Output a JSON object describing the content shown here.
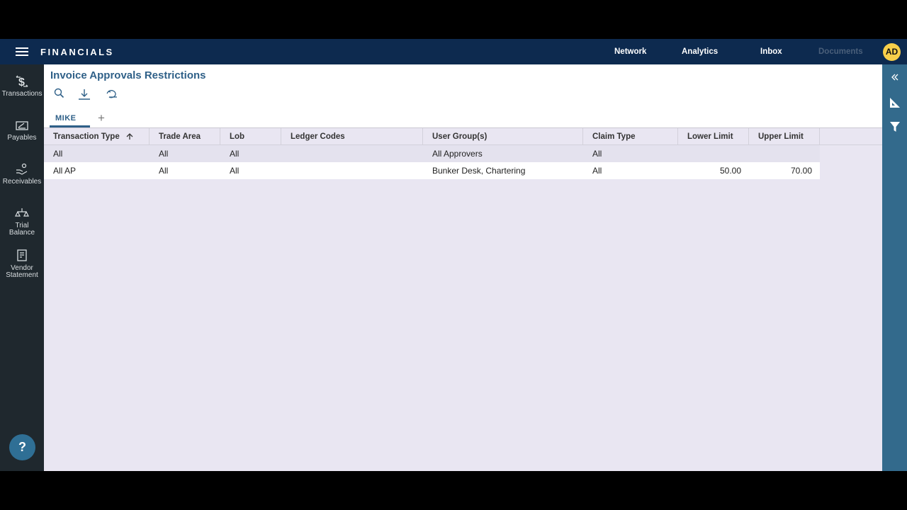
{
  "header": {
    "app_title": "FINANCIALS",
    "nav": [
      "Network",
      "Analytics",
      "Inbox",
      "Documents"
    ],
    "avatar": "AD"
  },
  "sidebar": {
    "items": [
      "Transactions",
      "Payables",
      "Receivables",
      "Trial Balance",
      "Vendor Statement"
    ],
    "help": "?"
  },
  "page": {
    "title": "Invoice Approvals Restrictions",
    "tabs": [
      "MIKE"
    ],
    "add_tab": "+"
  },
  "table": {
    "columns": [
      "Transaction Type",
      "Trade Area",
      "Lob",
      "Ledger Codes",
      "User Group(s)",
      "Claim Type",
      "Lower Limit",
      "Upper Limit"
    ],
    "sort": {
      "column": "Transaction Type",
      "direction": "ascending"
    },
    "rows": [
      [
        "All",
        "All",
        "All",
        "",
        "All Approvers",
        "All",
        "",
        ""
      ],
      [
        "All AP",
        "All",
        "All",
        "",
        "Bunker Desk, Chartering",
        "All",
        "50.00",
        "70.00"
      ]
    ]
  },
  "colors": {
    "topbar": "#0d2a4f",
    "sidebar": "#1f282e",
    "accent": "#2f6088",
    "right_panel": "#336a8c",
    "avatar": "#f8cf4a"
  }
}
